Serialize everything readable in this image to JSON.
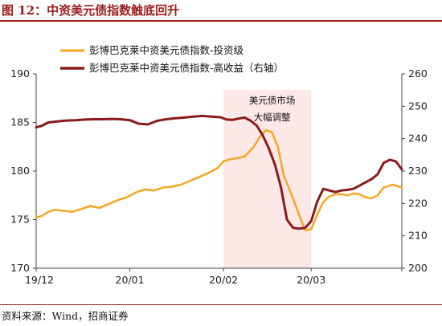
{
  "figure_title": "图 12：中资美元债指数触底回升",
  "source_note": "资料来源：Wind，招商证券",
  "colors": {
    "investment_grade": "#f5a623",
    "high_yield": "#8b1a1a",
    "shade": "#fde8e8",
    "title": "#9b1c1c"
  },
  "chart_data": {
    "type": "line",
    "x_tick_labels": [
      "19/12",
      "20/01",
      "20/02",
      "20/03"
    ],
    "x_tick_dates": [
      "2019-12-01",
      "2020-01-01",
      "2020-02-01",
      "2020-03-01"
    ],
    "x_range": [
      "2019-12-01",
      "2020-03-31"
    ],
    "y_left": {
      "min": 170,
      "max": 190,
      "ticks": [
        170,
        175,
        180,
        185,
        190
      ]
    },
    "y_right": {
      "min": 200,
      "max": 260,
      "ticks": [
        200,
        210,
        220,
        230,
        240,
        250,
        260
      ]
    },
    "legend_position": "top",
    "grid": false,
    "annotation": {
      "lines": [
        "美元债市场",
        "大幅调整"
      ],
      "range": [
        "2020-02-01",
        "2020-03-01"
      ]
    },
    "series": [
      {
        "name": "彭博巴克莱中资美元债指数-投资级",
        "axis": "left",
        "color": "#f5a623",
        "x": [
          "2019-12-01",
          "2019-12-03",
          "2019-12-05",
          "2019-12-07",
          "2019-12-10",
          "2019-12-13",
          "2019-12-16",
          "2019-12-19",
          "2019-12-22",
          "2019-12-25",
          "2019-12-28",
          "2019-12-31",
          "2020-01-03",
          "2020-01-06",
          "2020-01-09",
          "2020-01-12",
          "2020-01-15",
          "2020-01-18",
          "2020-01-21",
          "2020-01-24",
          "2020-01-27",
          "2020-01-30",
          "2020-02-01",
          "2020-02-03",
          "2020-02-05",
          "2020-02-08",
          "2020-02-11",
          "2020-02-13",
          "2020-02-15",
          "2020-02-17",
          "2020-02-19",
          "2020-02-21",
          "2020-02-24",
          "2020-02-26",
          "2020-02-28",
          "2020-03-01",
          "2020-03-03",
          "2020-03-05",
          "2020-03-07",
          "2020-03-09",
          "2020-03-11",
          "2020-03-13",
          "2020-03-15",
          "2020-03-17",
          "2020-03-19",
          "2020-03-21",
          "2020-03-23",
          "2020-03-25",
          "2020-03-28",
          "2020-03-31"
        ],
        "y": [
          175.2,
          175.4,
          175.8,
          176.0,
          175.9,
          175.8,
          176.1,
          176.4,
          176.2,
          176.6,
          177.0,
          177.3,
          177.8,
          178.1,
          178.0,
          178.3,
          178.4,
          178.6,
          179.0,
          179.4,
          179.8,
          180.3,
          181.0,
          181.2,
          181.3,
          181.5,
          182.5,
          183.5,
          184.2,
          184.0,
          182.5,
          179.5,
          177.2,
          175.5,
          173.9,
          174.0,
          175.5,
          176.8,
          177.4,
          177.6,
          177.6,
          177.5,
          177.7,
          177.6,
          177.3,
          177.2,
          177.5,
          178.3,
          178.6,
          178.3
        ]
      },
      {
        "name": "彭博巴克莱中资美元债指数-高收益（右轴）",
        "axis": "right",
        "color": "#8b1a1a",
        "x": [
          "2019-12-01",
          "2019-12-03",
          "2019-12-05",
          "2019-12-08",
          "2019-12-11",
          "2019-12-14",
          "2019-12-17",
          "2019-12-20",
          "2019-12-23",
          "2019-12-26",
          "2019-12-29",
          "2020-01-01",
          "2020-01-04",
          "2020-01-07",
          "2020-01-10",
          "2020-01-13",
          "2020-01-16",
          "2020-01-19",
          "2020-01-22",
          "2020-01-25",
          "2020-01-28",
          "2020-01-31",
          "2020-02-02",
          "2020-02-04",
          "2020-02-06",
          "2020-02-08",
          "2020-02-10",
          "2020-02-12",
          "2020-02-14",
          "2020-02-16",
          "2020-02-18",
          "2020-02-20",
          "2020-02-22",
          "2020-02-24",
          "2020-02-26",
          "2020-02-28",
          "2020-03-01",
          "2020-03-03",
          "2020-03-05",
          "2020-03-07",
          "2020-03-09",
          "2020-03-11",
          "2020-03-13",
          "2020-03-15",
          "2020-03-17",
          "2020-03-19",
          "2020-03-21",
          "2020-03-23",
          "2020-03-25",
          "2020-03-27",
          "2020-03-29",
          "2020-03-31"
        ],
        "y": [
          243.5,
          244.0,
          245.0,
          245.3,
          245.6,
          245.7,
          245.9,
          246.0,
          246.0,
          246.1,
          246.0,
          245.7,
          244.6,
          244.4,
          245.5,
          246.0,
          246.3,
          246.5,
          246.8,
          247.0,
          246.8,
          246.6,
          245.9,
          245.8,
          246.2,
          246.5,
          245.5,
          244.0,
          241.0,
          237.0,
          232.0,
          225.0,
          215.0,
          212.5,
          212.2,
          212.5,
          214.5,
          220.5,
          224.5,
          224.0,
          223.5,
          224.0,
          224.2,
          224.5,
          225.5,
          226.5,
          227.5,
          229.0,
          232.5,
          233.5,
          233.0,
          230.5
        ]
      }
    ]
  }
}
